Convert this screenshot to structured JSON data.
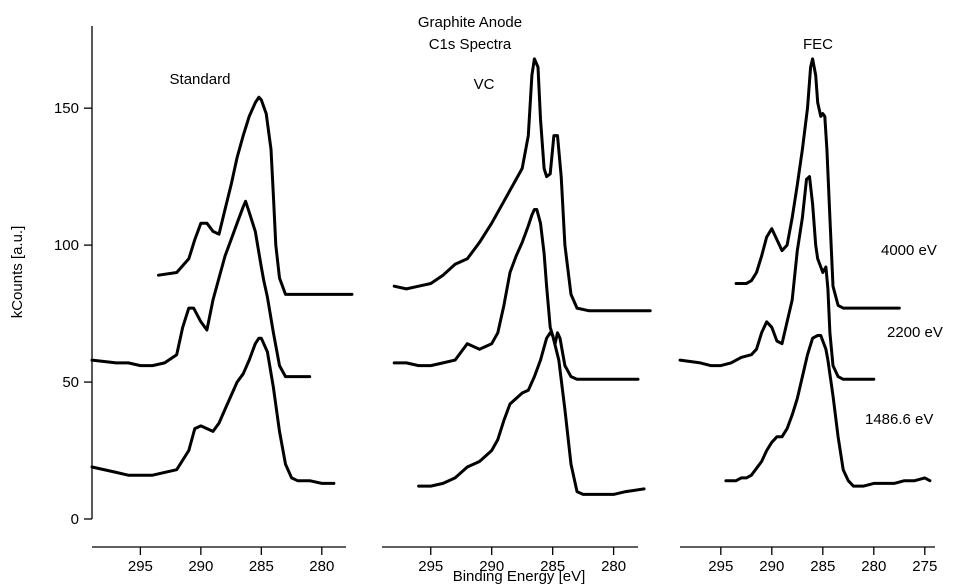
{
  "chart_data": {
    "type": "line",
    "title": "Graphite Anode\nC1s Spectra",
    "title_lines": [
      "Graphite Anode",
      "C1s Spectra"
    ],
    "xlabel": "Binding Energy [eV]",
    "ylabel": "kCounts [a.u.]",
    "ylim": [
      0,
      180
    ],
    "yticks": [
      0,
      50,
      100,
      150
    ],
    "reversed_x": true,
    "energy_labels": [
      "4000 eV",
      "2200 eV",
      "1486.6 eV"
    ],
    "panels": [
      {
        "label": "Standard",
        "xlim": [
          299,
          278
        ],
        "xticks": [
          295,
          290,
          285,
          280
        ],
        "series": [
          {
            "energy": "4000 eV",
            "x": [
              293.5,
              292,
              291,
              290.5,
              290,
              289.5,
              289,
              288.5,
              288,
              287.5,
              287,
              286.5,
              286,
              285.5,
              285.2,
              285,
              284.6,
              284.2,
              284,
              283.8,
              283.5,
              283,
              282.5,
              281,
              279,
              277.5
            ],
            "y": [
              89,
              90,
              95,
              102,
              108,
              108,
              105,
              104,
              113,
              122,
              132,
              140,
              147,
              152,
              154,
              153,
              148,
              135,
              118,
              100,
              88,
              82,
              82,
              82,
              82,
              82
            ]
          },
          {
            "energy": "2200 eV",
            "x": [
              299,
              297,
              296,
              295,
              294,
              293,
              292,
              291.5,
              291,
              290.6,
              290,
              289.5,
              289,
              288,
              287.5,
              287,
              286.5,
              286.3,
              286,
              285.5,
              285,
              284.8,
              284.5,
              284,
              283.5,
              283,
              282,
              281
            ],
            "y": [
              58,
              57,
              57,
              56,
              56,
              57,
              60,
              70,
              77,
              77,
              72,
              69,
              80,
              96,
              102,
              108,
              114,
              116,
              112,
              105,
              92,
              87,
              81,
              68,
              56,
              52,
              52,
              52
            ]
          },
          {
            "energy": "1486.6 eV",
            "x": [
              299,
              297,
              296,
              295,
              294,
              293,
              292,
              291,
              290.5,
              290,
              289.5,
              289,
              288.5,
              288,
              287,
              286.5,
              286,
              285.5,
              285.2,
              285,
              284.5,
              284,
              283.5,
              283,
              282.5,
              282,
              281,
              280,
              279
            ],
            "y": [
              19,
              17,
              16,
              16,
              16,
              17,
              18,
              25,
              33,
              34,
              33,
              32,
              35,
              40,
              50,
              53,
              58,
              64,
              66,
              66,
              61,
              48,
              32,
              20,
              15,
              14,
              14,
              13,
              13
            ]
          }
        ]
      },
      {
        "label": "VC",
        "xlim": [
          299,
          278
        ],
        "xticks": [
          295,
          290,
          285,
          280
        ],
        "series": [
          {
            "energy": "4000 eV",
            "x": [
              298,
              297,
              296,
              295,
              294,
              293,
              292.5,
              292,
              291.5,
              291,
              290,
              289,
              288.5,
              288,
              287.5,
              287,
              286.7,
              286.5,
              286.2,
              286,
              285.7,
              285.5,
              285.2,
              284.9,
              284.6,
              284.3,
              284,
              283.5,
              283,
              282,
              281,
              279,
              277
            ],
            "y": [
              85,
              84,
              85,
              86,
              89,
              93,
              94,
              95,
              98,
              101,
              108,
              116,
              120,
              124,
              128,
              140,
              162,
              168,
              165,
              146,
              128,
              125,
              126,
              140,
              140,
              125,
              100,
              82,
              77,
              76,
              76,
              76,
              76
            ]
          },
          {
            "energy": "2200 eV",
            "x": [
              298,
              297,
              296,
              295,
              294,
              293,
              292.5,
              292,
              291.5,
              291,
              290,
              289.5,
              289,
              288.5,
              288,
              287.5,
              287,
              286.7,
              286.5,
              286.3,
              286,
              285.7,
              285.5,
              285.2,
              284.8,
              284.6,
              284.4,
              284,
              283.5,
              283,
              282,
              281,
              279,
              278
            ],
            "y": [
              57,
              57,
              56,
              56,
              57,
              58,
              61,
              64,
              63,
              62,
              64,
              68,
              78,
              90,
              96,
              101,
              107,
              111,
              113,
              113,
              108,
              97,
              85,
              70,
              64,
              68,
              66,
              56,
              52,
              51,
              51,
              51,
              51,
              51
            ]
          },
          {
            "energy": "1486.6 eV",
            "x": [
              296,
              295,
              294,
              293,
              292,
              291,
              290,
              289.5,
              289,
              288.5,
              288,
              287.5,
              287,
              286.5,
              286,
              285.5,
              285.2,
              285,
              284.5,
              284,
              283.5,
              283,
              282.5,
              282,
              281,
              280,
              279,
              277.5
            ],
            "y": [
              12,
              12,
              13,
              15,
              19,
              21,
              25,
              29,
              36,
              42,
              44,
              46,
              47,
              52,
              58,
              66,
              68,
              67,
              58,
              40,
              20,
              10,
              9,
              9,
              9,
              9,
              10,
              11
            ]
          }
        ]
      },
      {
        "label": "FEC",
        "xlim": [
          299,
          274
        ],
        "xticks": [
          295,
          290,
          285,
          280,
          275
        ],
        "series": [
          {
            "energy": "4000 eV",
            "x": [
              293.5,
              292.5,
              292,
              291.5,
              291,
              290.5,
              290,
              289.5,
              289,
              288.5,
              288,
              287.5,
              287,
              286.5,
              286.2,
              286,
              285.7,
              285.5,
              285.2,
              285,
              284.8,
              284.6,
              284.3,
              284,
              283.5,
              283,
              282,
              281,
              279,
              277.5
            ],
            "y": [
              86,
              86,
              87,
              90,
              96,
              103,
              106,
              102,
              98,
              100,
              110,
              122,
              135,
              150,
              165,
              168,
              162,
              152,
              147,
              148,
              147,
              135,
              110,
              85,
              78,
              77,
              77,
              77,
              77,
              77
            ]
          },
          {
            "energy": "2200 eV",
            "x": [
              299,
              297,
              296,
              295,
              294,
              293,
              292,
              291.5,
              291,
              290.5,
              290,
              289.5,
              289,
              288,
              287.5,
              287,
              286.6,
              286.3,
              286,
              285.7,
              285.5,
              285.2,
              285,
              284.7,
              284.5,
              284.3,
              284,
              283.5,
              283,
              282,
              281,
              280
            ],
            "y": [
              58,
              57,
              56,
              56,
              57,
              59,
              60,
              62,
              68,
              72,
              70,
              65,
              64,
              80,
              98,
              110,
              124,
              125,
              115,
              100,
              95,
              92,
              90,
              92,
              84,
              68,
              56,
              52,
              51,
              51,
              51,
              51
            ]
          },
          {
            "energy": "1486.6 eV",
            "x": [
              294.5,
              293.5,
              293,
              292.5,
              292,
              291,
              290.5,
              290,
              289.5,
              289,
              288.5,
              288,
              287.5,
              287,
              286.5,
              286,
              285.5,
              285.2,
              285,
              284.7,
              284.5,
              284,
              283.5,
              283,
              282.5,
              282,
              281,
              280,
              279,
              278,
              277,
              276,
              275,
              274.5
            ],
            "y": [
              14,
              14,
              15,
              15,
              16,
              21,
              25,
              28,
              30,
              30,
              33,
              38,
              44,
              52,
              60,
              66,
              67,
              67,
              65,
              62,
              58,
              45,
              30,
              18,
              14,
              12,
              12,
              13,
              13,
              13,
              14,
              14,
              15,
              14
            ]
          }
        ]
      }
    ]
  }
}
